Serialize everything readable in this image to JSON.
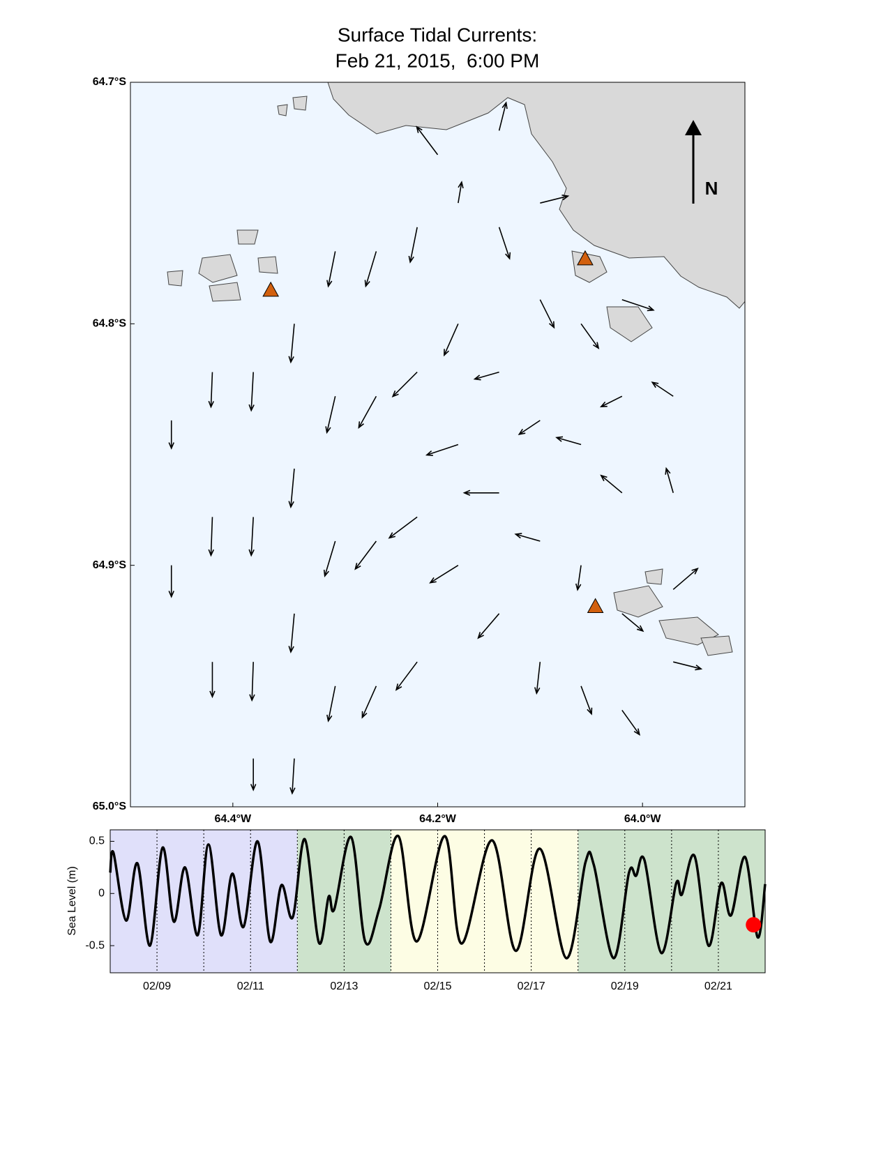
{
  "chart_data": [
    {
      "type": "quiver",
      "title": [
        "Surface Tidal Currents:",
        "Feb 21, 2015,  6:00 PM"
      ],
      "north_label": "N",
      "xlim": [
        -64.5,
        -63.9
      ],
      "ylim": [
        -65.0,
        -64.7
      ],
      "xticks": [
        {
          "value": -64.4,
          "label": "64.4°W"
        },
        {
          "value": -64.2,
          "label": "64.2°W"
        },
        {
          "value": -64.0,
          "label": "64.0°W"
        }
      ],
      "yticks": [
        {
          "value": -64.7,
          "label": "64.7°S"
        },
        {
          "value": -64.8,
          "label": "64.8°S"
        },
        {
          "value": -64.9,
          "label": "64.9°S"
        },
        {
          "value": -65.0,
          "label": "65.0°S"
        }
      ],
      "background": "#eef6ff",
      "vectors": {
        "color": "#000000",
        "lon": [
          -64.46,
          -64.46,
          -64.42,
          -64.42,
          -64.42,
          -64.38,
          -64.38,
          -64.38,
          -64.38,
          -64.34,
          -64.34,
          -64.34,
          -64.34,
          -64.3,
          -64.3,
          -64.3,
          -64.3,
          -64.26,
          -64.26,
          -64.26,
          -64.26,
          -64.22,
          -64.22,
          -64.22,
          -64.22,
          -64.18,
          -64.18,
          -64.18,
          -64.18,
          -64.14,
          -64.14,
          -64.14,
          -64.14,
          -64.1,
          -64.1,
          -64.1,
          -64.1,
          -64.1,
          -64.06,
          -64.06,
          -64.06,
          -64.06,
          -64.02,
          -64.02,
          -64.02,
          -64.02,
          -64.02,
          -63.97,
          -63.97,
          -63.97,
          -63.97,
          -64.2,
          -64.14
        ],
        "lat": [
          -64.84,
          -64.9,
          -64.82,
          -64.88,
          -64.94,
          -64.82,
          -64.88,
          -64.94,
          -64.98,
          -64.8,
          -64.86,
          -64.92,
          -64.98,
          -64.77,
          -64.83,
          -64.89,
          -64.95,
          -64.77,
          -64.83,
          -64.89,
          -64.95,
          -64.76,
          -64.82,
          -64.88,
          -64.94,
          -64.75,
          -64.8,
          -64.85,
          -64.9,
          -64.76,
          -64.82,
          -64.87,
          -64.92,
          -64.75,
          -64.79,
          -64.84,
          -64.89,
          -64.94,
          -64.8,
          -64.85,
          -64.9,
          -64.95,
          -64.79,
          -64.83,
          -64.87,
          -64.92,
          -64.96,
          -64.83,
          -64.87,
          -64.91,
          -64.94,
          -64.73,
          -64.72
        ],
        "u": [
          0,
          0,
          -2,
          -2,
          0,
          -3,
          -3,
          -2,
          0,
          -5,
          -5,
          -5,
          -3,
          -10,
          -12,
          -15,
          -10,
          -15,
          -25,
          -30,
          -20,
          -10,
          -35,
          -40,
          -30,
          5,
          -20,
          -45,
          -40,
          15,
          -35,
          -50,
          -30,
          40,
          20,
          -30,
          -35,
          -5,
          25,
          -35,
          -5,
          15,
          45,
          -30,
          -30,
          30,
          25,
          -30,
          -10,
          35,
          40,
          -30,
          10
        ],
        "v": [
          -40,
          -45,
          -50,
          -55,
          -50,
          -55,
          -55,
          -55,
          -45,
          -55,
          -55,
          -55,
          -50,
          -50,
          -52,
          -50,
          -50,
          -50,
          -45,
          -40,
          -45,
          -50,
          -35,
          -30,
          -40,
          30,
          -45,
          -15,
          -25,
          -45,
          -10,
          0,
          -35,
          10,
          -40,
          -20,
          10,
          -45,
          -35,
          10,
          -35,
          -40,
          -15,
          -15,
          25,
          -25,
          -35,
          20,
          35,
          30,
          -10,
          40,
          40
        ]
      },
      "stations": {
        "color": "#d2600e",
        "lon": [
          -64.363,
          -64.056,
          -64.046
        ],
        "lat": [
          -64.786,
          -64.773,
          -64.917
        ]
      }
    },
    {
      "type": "line",
      "ylabel": "Sea Level (m)",
      "xlim": [
        8,
        22
      ],
      "ylim": [
        -0.76,
        0.61
      ],
      "xticks": [
        {
          "value": 9,
          "label": "02/09"
        },
        {
          "value": 11,
          "label": "02/11"
        },
        {
          "value": 13,
          "label": "02/13"
        },
        {
          "value": 15,
          "label": "02/15"
        },
        {
          "value": 17,
          "label": "02/17"
        },
        {
          "value": 19,
          "label": "02/19"
        },
        {
          "value": 21,
          "label": "02/21"
        }
      ],
      "minor_xticks": [
        10,
        12,
        14,
        16,
        18,
        20
      ],
      "yticks": [
        0.5,
        0,
        -0.5
      ],
      "bands": [
        {
          "from": 8,
          "to": 12,
          "color": "#e0e0fa"
        },
        {
          "from": 12,
          "to": 14,
          "color": "#cde3cc"
        },
        {
          "from": 14,
          "to": 18,
          "color": "#fdfde4"
        },
        {
          "from": 18,
          "to": 22,
          "color": "#cde3cc"
        }
      ],
      "series": [
        {
          "color": "#000000",
          "x": [
            8.0,
            8.07,
            8.34,
            8.58,
            8.85,
            9.12,
            9.36,
            9.6,
            9.87,
            10.1,
            10.37,
            10.61,
            10.85,
            11.15,
            11.42,
            11.66,
            11.9,
            12.16,
            12.46,
            12.67,
            12.79,
            13.15,
            13.45,
            13.75,
            14.16,
            14.55,
            15.15,
            15.51,
            16.16,
            16.67,
            17.18,
            17.75,
            18.16,
            18.34,
            18.76,
            19.09,
            19.24,
            19.42,
            19.78,
            20.1,
            20.22,
            20.49,
            20.79,
            21.06,
            21.27,
            21.57,
            21.84,
            22.0
          ],
          "values": [
            0.2,
            0.39,
            -0.26,
            0.29,
            -0.5,
            0.44,
            -0.27,
            0.25,
            -0.4,
            0.47,
            -0.4,
            0.19,
            -0.32,
            0.5,
            -0.46,
            0.08,
            -0.23,
            0.52,
            -0.47,
            -0.03,
            -0.15,
            0.54,
            -0.46,
            -0.15,
            0.55,
            -0.46,
            0.55,
            -0.48,
            0.51,
            -0.55,
            0.43,
            -0.62,
            0.3,
            0.27,
            -0.62,
            0.2,
            0.17,
            0.32,
            -0.57,
            0.1,
            -0.01,
            0.36,
            -0.5,
            0.1,
            -0.21,
            0.35,
            -0.42,
            0.09
          ]
        }
      ],
      "marker": {
        "x": 21.75,
        "value": -0.3,
        "color": "#ff0000"
      }
    }
  ]
}
